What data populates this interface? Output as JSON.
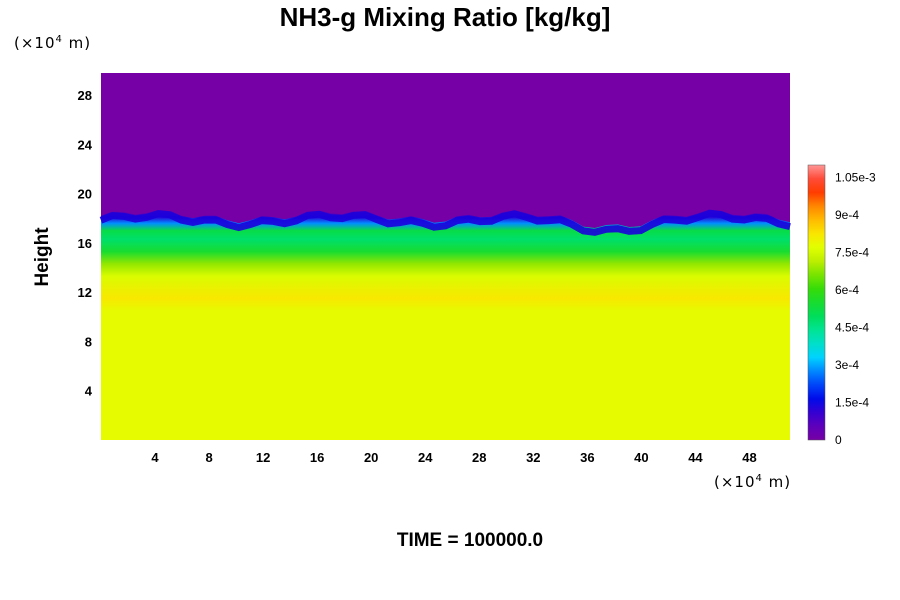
{
  "chart_data": {
    "type": "heatmap",
    "title": "NH3-g Mixing Ratio [kg/kg]",
    "ylabel": "Height",
    "x_unit_prefix": "(×10",
    "x_unit_exp": "4",
    "x_unit_suffix": " m)",
    "y_unit_prefix": "(×10",
    "y_unit_exp": "4",
    "y_unit_suffix": " m)",
    "x_ticks": [
      "4",
      "8",
      "12",
      "16",
      "20",
      "24",
      "28",
      "32",
      "36",
      "40",
      "44",
      "48"
    ],
    "x_tick_values": [
      4,
      8,
      12,
      16,
      20,
      24,
      28,
      32,
      36,
      40,
      44,
      48
    ],
    "y_ticks": [
      "4",
      "8",
      "12",
      "16",
      "20",
      "24",
      "28"
    ],
    "y_tick_values": [
      4,
      8,
      12,
      16,
      20,
      24,
      28
    ],
    "xlim": [
      0,
      51
    ],
    "ylim": [
      0,
      29.8
    ],
    "colorbar": {
      "range": [
        0,
        0.0011
      ],
      "labels": [
        "0",
        "1.5e-4",
        "3e-4",
        "4.5e-4",
        "6e-4",
        "7.5e-4",
        "9e-4",
        "1.05e-3"
      ],
      "label_values": [
        0,
        0.00015,
        0.0003,
        0.00045,
        0.0006,
        0.00075,
        0.0009,
        0.00105
      ]
    },
    "field_profile": [
      {
        "height": 0,
        "value": 0.00078
      },
      {
        "height": 10.5,
        "value": 0.00078
      },
      {
        "height": 11.5,
        "value": 0.00082
      },
      {
        "height": 13.3,
        "value": 0.00076
      },
      {
        "height": 14.3,
        "value": 0.00068
      },
      {
        "height": 15.3,
        "value": 0.00055
      },
      {
        "height": 16.3,
        "value": 0.00048
      },
      {
        "height": 17.0,
        "value": 0.00052
      },
      {
        "height": 17.6,
        "value": 0.00028
      },
      {
        "height": 18.1,
        "value": 0.00012
      },
      {
        "height": 18.6,
        "value": 0.0
      },
      {
        "height": 29.8,
        "value": 0.0
      }
    ],
    "legend_placement": "right",
    "grid": false
  },
  "footer": {
    "time_label": "TIME = 100000.0"
  }
}
